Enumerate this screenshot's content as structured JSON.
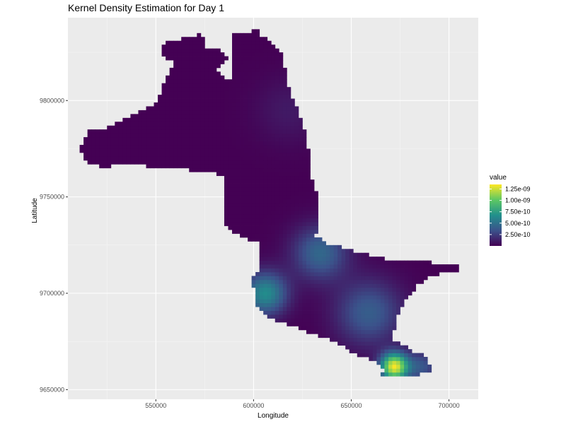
{
  "chart_data": {
    "type": "heatmap",
    "title": "Kernel Density Estimation for Day 1",
    "xlabel": "Longitude",
    "ylabel": "Latitude",
    "xlim": [
      505000,
      715000
    ],
    "ylim": [
      9645000,
      9843000
    ],
    "x_ticks": [
      550000,
      600000,
      650000,
      700000
    ],
    "x_tick_labels": [
      "550000",
      "600000",
      "650000",
      "700000"
    ],
    "y_ticks": [
      9650000,
      9700000,
      9750000,
      9800000
    ],
    "y_tick_labels": [
      "9650000",
      "9700000",
      "9750000",
      "9800000"
    ],
    "grid": true,
    "colormap": "viridis",
    "colors": {
      "panel_background": "#ebebeb",
      "grid_major": "#ffffff",
      "grid_minor": "#f4f4f4",
      "viridis": [
        "#440154",
        "#3b528b",
        "#21908c",
        "#5dc863",
        "#fde725"
      ]
    },
    "legend": {
      "title": "value",
      "position": "right",
      "min": 0,
      "max": 1.35e-09,
      "breaks": [
        2.5e-10,
        5e-10,
        7.5e-10,
        1e-09,
        1.25e-09
      ],
      "labels": [
        "2.50e-10",
        "5.00e-10",
        "7.50e-10",
        "1.00e-09",
        "1.25e-09"
      ]
    },
    "region_outline": [
      [
        512000,
        9776000
      ],
      [
        513000,
        9779000
      ],
      [
        515000,
        9784000
      ],
      [
        525000,
        9786000
      ],
      [
        537000,
        9792000
      ],
      [
        546000,
        9796000
      ],
      [
        551000,
        9800000
      ],
      [
        554000,
        9809000
      ],
      [
        557000,
        9816000
      ],
      [
        560000,
        9819000
      ],
      [
        555000,
        9822000
      ],
      [
        552000,
        9827000
      ],
      [
        556000,
        9830000
      ],
      [
        564000,
        9832000
      ],
      [
        570000,
        9833000
      ],
      [
        573000,
        9835000
      ],
      [
        575000,
        9832000
      ],
      [
        575000,
        9827000
      ],
      [
        582000,
        9828000
      ],
      [
        584000,
        9825000
      ],
      [
        588000,
        9822000
      ],
      [
        583000,
        9819000
      ],
      [
        582000,
        9816000
      ],
      [
        587000,
        9811000
      ],
      [
        590000,
        9809000
      ],
      [
        590000,
        9834000
      ],
      [
        594000,
        9836000
      ],
      [
        600000,
        9836000
      ],
      [
        604000,
        9838000
      ],
      [
        604000,
        9834000
      ],
      [
        608000,
        9832000
      ],
      [
        611000,
        9829000
      ],
      [
        614000,
        9826000
      ],
      [
        616000,
        9818000
      ],
      [
        617000,
        9810000
      ],
      [
        619000,
        9804000
      ],
      [
        622000,
        9797000
      ],
      [
        625000,
        9789000
      ],
      [
        627000,
        9783000
      ],
      [
        628000,
        9775000
      ],
      [
        630000,
        9768000
      ],
      [
        630000,
        9759000
      ],
      [
        633000,
        9750000
      ],
      [
        634000,
        9738000
      ],
      [
        632000,
        9730000
      ],
      [
        637000,
        9726000
      ],
      [
        645000,
        9724000
      ],
      [
        652000,
        9722000
      ],
      [
        660000,
        9720000
      ],
      [
        668000,
        9718000
      ],
      [
        676000,
        9718000
      ],
      [
        684000,
        9717000
      ],
      [
        692000,
        9716000
      ],
      [
        700000,
        9715000
      ],
      [
        706000,
        9714000
      ],
      [
        705000,
        9712000
      ],
      [
        698000,
        9711000
      ],
      [
        690000,
        9708000
      ],
      [
        684000,
        9704000
      ],
      [
        679000,
        9698000
      ],
      [
        675000,
        9692000
      ],
      [
        673000,
        9684000
      ],
      [
        670000,
        9677000
      ],
      [
        675000,
        9674000
      ],
      [
        682000,
        9670000
      ],
      [
        688000,
        9668000
      ],
      [
        690000,
        9664000
      ],
      [
        691000,
        9660000
      ],
      [
        686000,
        9658000
      ],
      [
        678000,
        9658000
      ],
      [
        671000,
        9657000
      ],
      [
        665000,
        9656000
      ],
      [
        667000,
        9661000
      ],
      [
        662000,
        9665000
      ],
      [
        656000,
        9667000
      ],
      [
        650000,
        9670000
      ],
      [
        644000,
        9674000
      ],
      [
        637000,
        9677000
      ],
      [
        628000,
        9680000
      ],
      [
        620000,
        9683000
      ],
      [
        612000,
        9686000
      ],
      [
        605000,
        9689000
      ],
      [
        602000,
        9694000
      ],
      [
        601000,
        9699000
      ],
      [
        600000,
        9704000
      ],
      [
        600000,
        9708000
      ],
      [
        603000,
        9711000
      ],
      [
        604000,
        9715000
      ],
      [
        604000,
        9722000
      ],
      [
        603000,
        9726000
      ],
      [
        597000,
        9728000
      ],
      [
        590000,
        9731000
      ],
      [
        586000,
        9735000
      ],
      [
        585000,
        9741000
      ],
      [
        585000,
        9747000
      ],
      [
        584000,
        9753000
      ],
      [
        585000,
        9760000
      ],
      [
        578000,
        9763000
      ],
      [
        568000,
        9764000
      ],
      [
        562000,
        9765000
      ],
      [
        556000,
        9764000
      ],
      [
        550000,
        9765000
      ],
      [
        545000,
        9766000
      ],
      [
        538000,
        9767000
      ],
      [
        530000,
        9767000
      ],
      [
        524000,
        9765000
      ],
      [
        518000,
        9767000
      ],
      [
        513000,
        9769000
      ],
      [
        512000,
        9773000
      ]
    ],
    "hotspots": [
      {
        "x": 672000,
        "y": 9662000,
        "value": 1.3e-09,
        "spread": 5000
      },
      {
        "x": 606000,
        "y": 9700000,
        "value": 6.5e-10,
        "spread": 8000
      },
      {
        "x": 634000,
        "y": 9721000,
        "value": 4.5e-10,
        "spread": 10000
      },
      {
        "x": 659000,
        "y": 9690000,
        "value": 4e-10,
        "spread": 12000
      },
      {
        "x": 686000,
        "y": 9662000,
        "value": 3.5e-10,
        "spread": 6000
      },
      {
        "x": 618000,
        "y": 9795000,
        "value": 1e-10,
        "spread": 12000
      }
    ]
  }
}
